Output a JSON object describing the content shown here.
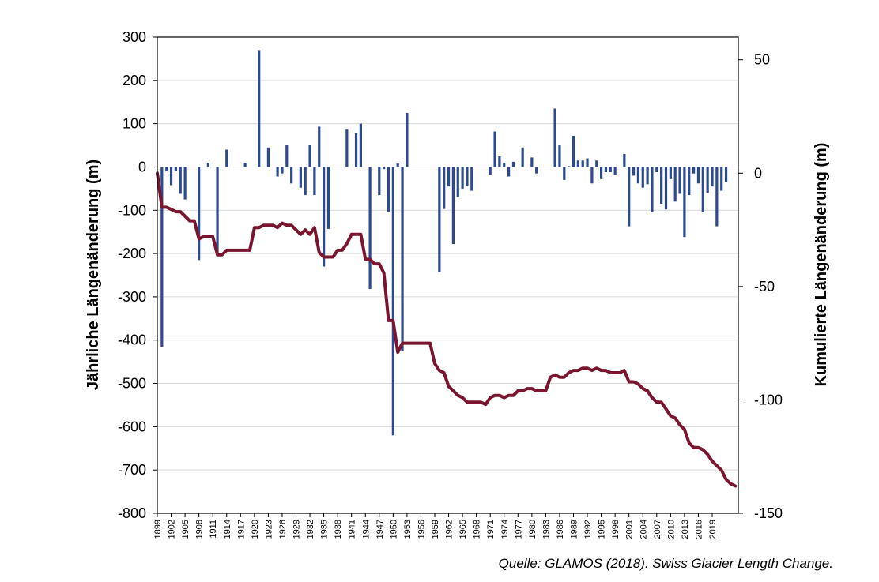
{
  "source": "Quelle: GLAMOS (2018). Swiss Glacier Length Change.",
  "chart_data": {
    "type": "bar",
    "xlabel": "",
    "ylabel_left": "Jährliche Längenänderung (m)",
    "ylabel_right": "Kumulierte Längenänderung (m)",
    "ylim_left": [
      -800,
      300
    ],
    "ylim_right": [
      -150,
      60
    ],
    "yticks_left": [
      300,
      200,
      100,
      0,
      -100,
      -200,
      -300,
      -400,
      -500,
      -600,
      -700,
      -800
    ],
    "yticks_right": [
      50,
      0,
      -50,
      -100,
      -150
    ],
    "xlim": [
      1899,
      2019
    ],
    "xticks": [
      1899,
      1902,
      1905,
      1908,
      1911,
      1914,
      1917,
      1920,
      1923,
      1926,
      1929,
      1932,
      1935,
      1938,
      1941,
      1944,
      1947,
      1950,
      1953,
      1956,
      1959,
      1962,
      1965,
      1968,
      1971,
      1974,
      1977,
      1980,
      1983,
      1986,
      1989,
      1992,
      1995,
      1998,
      2001,
      2004,
      2007,
      2010,
      2013,
      2016,
      2019
    ],
    "grid": true,
    "colors": {
      "bars": "#2E4A8F",
      "cumulative": "#7A1530",
      "grid": "#D9D9D9"
    },
    "series": [
      {
        "kind": "bar",
        "axis": "left",
        "points": [
          [
            1900,
            -415
          ],
          [
            1901,
            -10
          ],
          [
            1902,
            -42
          ],
          [
            1903,
            -10
          ],
          [
            1904,
            -62
          ],
          [
            1905,
            -75
          ],
          [
            1908,
            -215
          ],
          [
            1910,
            10
          ],
          [
            1912,
            -203
          ],
          [
            1914,
            40
          ],
          [
            1918,
            10
          ],
          [
            1921,
            270
          ],
          [
            1923,
            45
          ],
          [
            1925,
            -22
          ],
          [
            1926,
            -15
          ],
          [
            1927,
            50
          ],
          [
            1928,
            -38
          ],
          [
            1930,
            -48
          ],
          [
            1931,
            -65
          ],
          [
            1932,
            50
          ],
          [
            1933,
            -65
          ],
          [
            1934,
            93
          ],
          [
            1935,
            -230
          ],
          [
            1936,
            -143
          ],
          [
            1940,
            88
          ],
          [
            1942,
            78
          ],
          [
            1943,
            100
          ],
          [
            1945,
            -282
          ],
          [
            1947,
            -65
          ],
          [
            1948,
            -5
          ],
          [
            1949,
            -103
          ],
          [
            1950,
            -620
          ],
          [
            1951,
            8
          ],
          [
            1952,
            -425
          ],
          [
            1953,
            125
          ],
          [
            1960,
            -243
          ],
          [
            1961,
            -97
          ],
          [
            1962,
            -45
          ],
          [
            1963,
            -178
          ],
          [
            1964,
            -70
          ],
          [
            1965,
            -50
          ],
          [
            1966,
            -43
          ],
          [
            1967,
            -55
          ],
          [
            1971,
            -18
          ],
          [
            1972,
            82
          ],
          [
            1973,
            25
          ],
          [
            1974,
            10
          ],
          [
            1975,
            -22
          ],
          [
            1976,
            12
          ],
          [
            1978,
            45
          ],
          [
            1980,
            22
          ],
          [
            1981,
            -15
          ],
          [
            1985,
            135
          ],
          [
            1986,
            50
          ],
          [
            1987,
            -30
          ],
          [
            1988,
            2
          ],
          [
            1989,
            72
          ],
          [
            1990,
            15
          ],
          [
            1991,
            15
          ],
          [
            1992,
            20
          ],
          [
            1993,
            -38
          ],
          [
            1994,
            15
          ],
          [
            1995,
            -28
          ],
          [
            1996,
            -12
          ],
          [
            1997,
            -12
          ],
          [
            1998,
            -18
          ],
          [
            2000,
            30
          ],
          [
            2001,
            -137
          ],
          [
            2002,
            -20
          ],
          [
            2003,
            -38
          ],
          [
            2004,
            -48
          ],
          [
            2005,
            -40
          ],
          [
            2006,
            -105
          ],
          [
            2007,
            -12
          ],
          [
            2008,
            -85
          ],
          [
            2009,
            -98
          ],
          [
            2010,
            -28
          ],
          [
            2011,
            -80
          ],
          [
            2012,
            -62
          ],
          [
            2013,
            -162
          ],
          [
            2014,
            -65
          ],
          [
            2015,
            -15
          ],
          [
            2016,
            -38
          ],
          [
            2017,
            -105
          ],
          [
            2018,
            -60
          ],
          [
            2019,
            -45
          ],
          [
            2020,
            -137
          ],
          [
            2021,
            -55
          ],
          [
            2022,
            -35
          ]
        ]
      },
      {
        "kind": "line",
        "axis": "right",
        "points": [
          [
            1899,
            0
          ],
          [
            1900,
            -15
          ],
          [
            1901,
            -15
          ],
          [
            1902,
            -16
          ],
          [
            1903,
            -17
          ],
          [
            1904,
            -17
          ],
          [
            1905,
            -19
          ],
          [
            1906,
            -21
          ],
          [
            1907,
            -21
          ],
          [
            1908,
            -29
          ],
          [
            1909,
            -28
          ],
          [
            1910,
            -28
          ],
          [
            1911,
            -28
          ],
          [
            1912,
            -36
          ],
          [
            1913,
            -36
          ],
          [
            1914,
            -34
          ],
          [
            1915,
            -34
          ],
          [
            1916,
            -34
          ],
          [
            1917,
            -34
          ],
          [
            1918,
            -34
          ],
          [
            1919,
            -34
          ],
          [
            1920,
            -24
          ],
          [
            1921,
            -24
          ],
          [
            1922,
            -23
          ],
          [
            1923,
            -23
          ],
          [
            1924,
            -23
          ],
          [
            1925,
            -24
          ],
          [
            1926,
            -22
          ],
          [
            1927,
            -23
          ],
          [
            1928,
            -23
          ],
          [
            1929,
            -25
          ],
          [
            1930,
            -27
          ],
          [
            1931,
            -25
          ],
          [
            1932,
            -27
          ],
          [
            1933,
            -24
          ],
          [
            1934,
            -35
          ],
          [
            1935,
            -37
          ],
          [
            1936,
            -37
          ],
          [
            1937,
            -37
          ],
          [
            1938,
            -34
          ],
          [
            1939,
            -34
          ],
          [
            1940,
            -31
          ],
          [
            1941,
            -27
          ],
          [
            1942,
            -27
          ],
          [
            1943,
            -27
          ],
          [
            1944,
            -38
          ],
          [
            1945,
            -38
          ],
          [
            1946,
            -40
          ],
          [
            1947,
            -40
          ],
          [
            1948,
            -44
          ],
          [
            1949,
            -65
          ],
          [
            1950,
            -65
          ],
          [
            1951,
            -79
          ],
          [
            1952,
            -75
          ],
          [
            1953,
            -75
          ],
          [
            1954,
            -75
          ],
          [
            1955,
            -75
          ],
          [
            1956,
            -75
          ],
          [
            1957,
            -75
          ],
          [
            1958,
            -75
          ],
          [
            1959,
            -84
          ],
          [
            1960,
            -87
          ],
          [
            1961,
            -88
          ],
          [
            1962,
            -94
          ],
          [
            1963,
            -96
          ],
          [
            1964,
            -98
          ],
          [
            1965,
            -99
          ],
          [
            1966,
            -101
          ],
          [
            1967,
            -101
          ],
          [
            1968,
            -101
          ],
          [
            1969,
            -101
          ],
          [
            1970,
            -102
          ],
          [
            1971,
            -99
          ],
          [
            1972,
            -98
          ],
          [
            1973,
            -98
          ],
          [
            1974,
            -99
          ],
          [
            1975,
            -98
          ],
          [
            1976,
            -98
          ],
          [
            1977,
            -96
          ],
          [
            1978,
            -96
          ],
          [
            1979,
            -95
          ],
          [
            1980,
            -95
          ],
          [
            1981,
            -96
          ],
          [
            1982,
            -96
          ],
          [
            1983,
            -96
          ],
          [
            1984,
            -90
          ],
          [
            1985,
            -89
          ],
          [
            1986,
            -90
          ],
          [
            1987,
            -90
          ],
          [
            1988,
            -88
          ],
          [
            1989,
            -87
          ],
          [
            1990,
            -87
          ],
          [
            1991,
            -86
          ],
          [
            1992,
            -86
          ],
          [
            1993,
            -87
          ],
          [
            1994,
            -86
          ],
          [
            1995,
            -87
          ],
          [
            1996,
            -87
          ],
          [
            1997,
            -88
          ],
          [
            1998,
            -88
          ],
          [
            1999,
            -88
          ],
          [
            2000,
            -87
          ],
          [
            2001,
            -92
          ],
          [
            2002,
            -92
          ],
          [
            2003,
            -93
          ],
          [
            2004,
            -95
          ],
          [
            2005,
            -96
          ],
          [
            2006,
            -99
          ],
          [
            2007,
            -101
          ],
          [
            2008,
            -101
          ],
          [
            2009,
            -104
          ],
          [
            2010,
            -107
          ],
          [
            2011,
            -108
          ],
          [
            2012,
            -111
          ],
          [
            2013,
            -113
          ],
          [
            2014,
            -119
          ],
          [
            2015,
            -121
          ],
          [
            2016,
            -121
          ],
          [
            2017,
            -122
          ],
          [
            2018,
            -124
          ],
          [
            2019,
            -127
          ],
          [
            2020,
            -129
          ],
          [
            2021,
            -131
          ],
          [
            2022,
            -135
          ],
          [
            2023,
            -137
          ],
          [
            2024,
            -138
          ]
        ]
      }
    ]
  }
}
